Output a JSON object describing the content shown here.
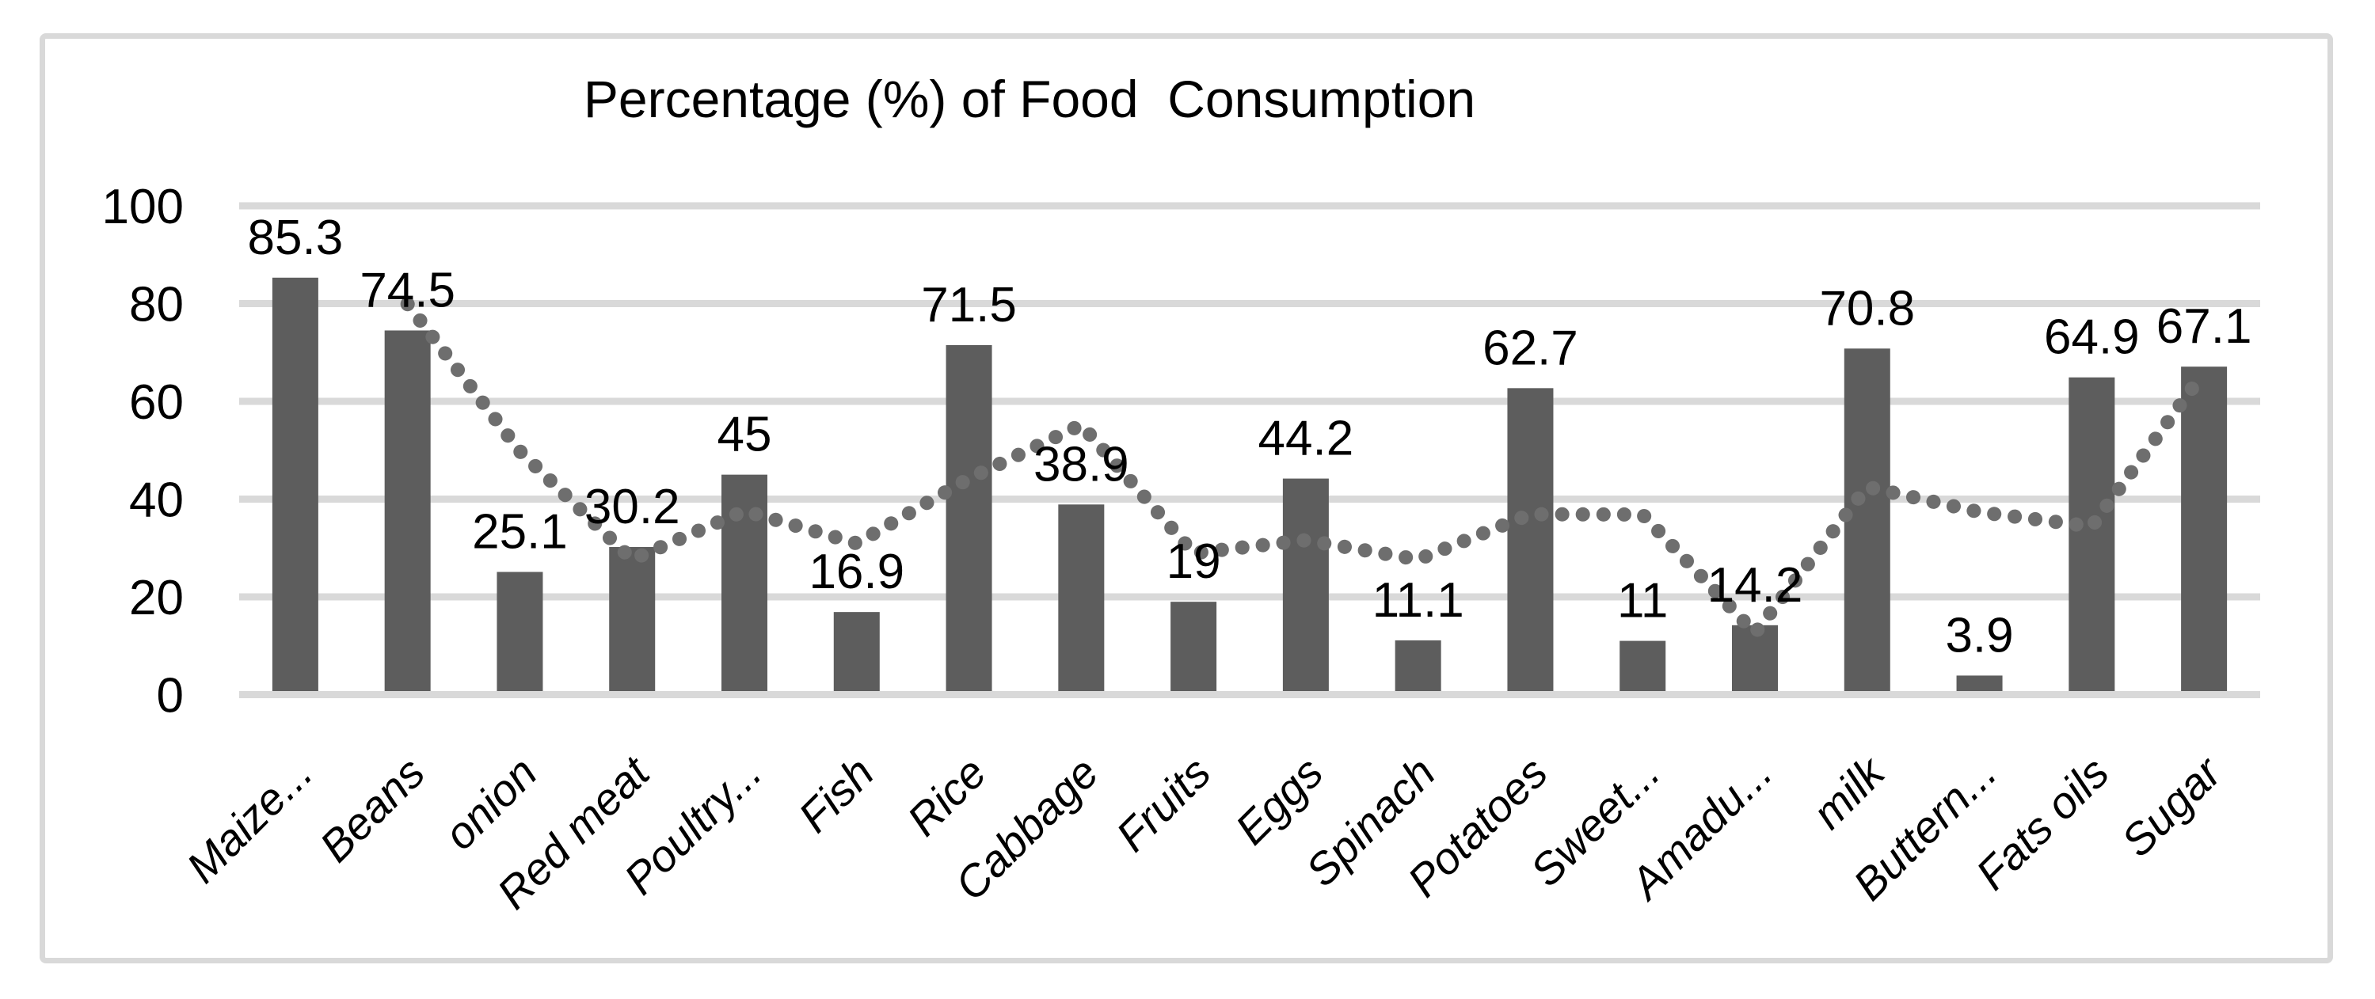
{
  "chart_data": {
    "type": "bar",
    "title": "Percentage (%) of Food  Consumption",
    "categories": [
      "Maize...",
      "Beans",
      "onion",
      "Red meat",
      "Poultry...",
      "Fish",
      "Rice",
      "Cabbage",
      "Fruits",
      "Eggs",
      "Spinach",
      "Potatoes",
      "Sweet...",
      "Amadu...",
      "milk",
      "Buttern...",
      "Fats oils",
      "Sugar"
    ],
    "values": [
      85.3,
      74.5,
      25.1,
      30.2,
      45,
      16.9,
      71.5,
      38.9,
      19,
      44.2,
      11.1,
      62.7,
      11,
      14.2,
      70.8,
      3.9,
      64.9,
      67.1
    ],
    "value_labels": [
      "85.3",
      "74.5",
      "25.1",
      "30.2",
      "45",
      "16.9",
      "71.5",
      "38.9",
      "19",
      "44.2",
      "11.1",
      "62.7",
      "11",
      "14.2",
      "70.8",
      "3.9",
      "64.9",
      "67.1"
    ],
    "trendline": {
      "style": "dotted",
      "type": "moving_average",
      "period": 2,
      "values": [
        null,
        79.9,
        49.8,
        27.65,
        37.6,
        30.95,
        44.2,
        55.2,
        28.95,
        31.6,
        27.65,
        36.9,
        36.85,
        12.6,
        42.5,
        37.35,
        34.4,
        66
      ]
    },
    "ylim": [
      0,
      100
    ],
    "yticks": [
      0,
      20,
      40,
      60,
      80,
      100
    ],
    "grid": true,
    "legend": "none",
    "colors": {
      "bar": "#5d5d5d",
      "trend_dots": "#6e6e6e",
      "gridline": "#d9d9d9",
      "axis_line": "#d9d9d9",
      "border": "#d9d9d9",
      "text": "#000000",
      "background": "#ffffff"
    }
  }
}
